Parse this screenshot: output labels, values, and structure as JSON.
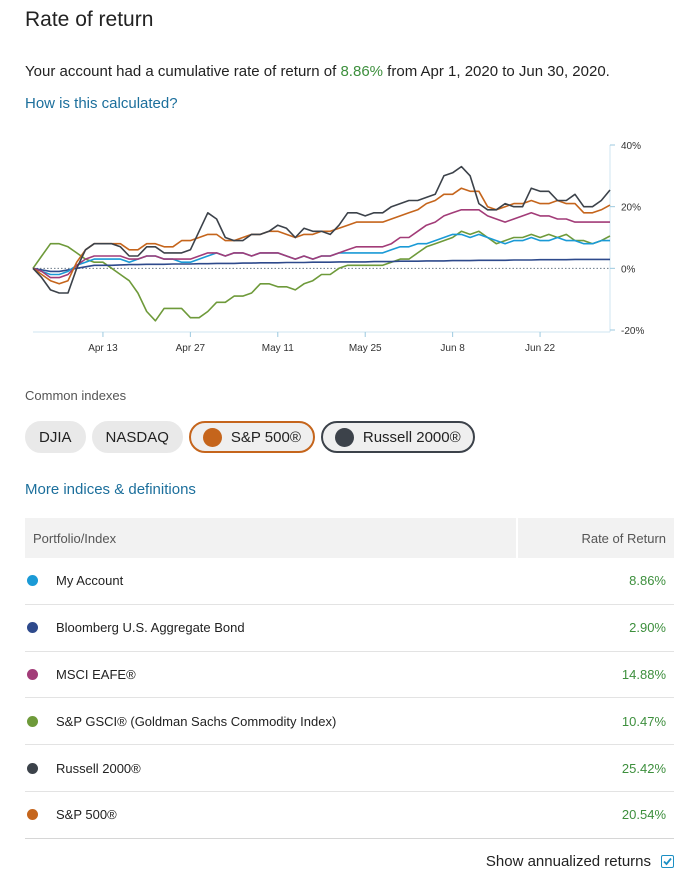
{
  "title": "Rate of return",
  "summary": {
    "prefix": "Your account had a cumulative rate of return of ",
    "value": "8.86%",
    "suffix": " from Apr 1, 2020 to Jun 30, 2020."
  },
  "how_link": "How is this calculated?",
  "common_indexes_label": "Common indexes",
  "chips": [
    {
      "label": "DJIA",
      "selected": false
    },
    {
      "label": "NASDAQ",
      "selected": false
    },
    {
      "label": "S&P 500®",
      "selected": true,
      "color": "#c5651c"
    },
    {
      "label": "Russell 2000®",
      "selected": true,
      "color": "#3c424a"
    }
  ],
  "more_link": "More indices & definitions",
  "table": {
    "headers": [
      "Portfolio/Index",
      "Rate of Return"
    ],
    "rows": [
      {
        "name": "My Account",
        "value": "8.86%",
        "color": "#1a9ad6"
      },
      {
        "name": "Bloomberg U.S. Aggregate Bond",
        "value": "2.90%",
        "color": "#2e4a8c"
      },
      {
        "name": "MSCI EAFE®",
        "value": "14.88%",
        "color": "#a23c78"
      },
      {
        "name": "S&P GSCI® (Goldman Sachs Commodity Index)",
        "value": "10.47%",
        "color": "#6e9a3a"
      },
      {
        "name": "Russell 2000®",
        "value": "25.42%",
        "color": "#3c424a"
      },
      {
        "name": "S&P 500®",
        "value": "20.54%",
        "color": "#c5651c"
      }
    ]
  },
  "annualized_label": "Show annualized returns",
  "annualized_checked": true,
  "chart_data": {
    "type": "line",
    "x_tick_labels": [
      "Apr 13",
      "Apr 27",
      "May 11",
      "May 25",
      "Jun 8",
      "Jun 22"
    ],
    "x_tick_index": [
      8,
      18,
      28,
      38,
      48,
      58
    ],
    "y_tick_labels": [
      "40%",
      "20%",
      "0%",
      "-20%"
    ],
    "y_ticks": [
      40,
      20,
      0,
      -20
    ],
    "ylim": [
      -20,
      40
    ],
    "xlim": [
      0,
      66
    ],
    "grid": false,
    "series": [
      {
        "name": "My Account",
        "color": "#1a9ad6",
        "values": [
          0,
          -1,
          -2,
          -2,
          -1,
          1,
          2,
          3,
          3,
          3,
          3,
          2,
          3,
          4,
          4,
          3,
          3,
          2,
          2,
          3,
          4,
          5,
          4,
          5,
          5,
          4,
          5,
          5,
          5,
          4,
          3,
          4,
          3,
          4,
          4,
          5,
          5,
          5,
          5,
          5,
          5,
          6,
          7,
          7,
          8,
          8,
          9,
          10,
          11,
          11,
          10,
          11,
          10,
          9,
          8,
          9,
          9,
          10,
          9,
          9,
          10,
          9,
          9,
          8,
          8,
          9,
          9
        ]
      },
      {
        "name": "Bloomberg U.S. Aggregate Bond",
        "color": "#2e4a8c",
        "values": [
          0,
          -0.5,
          -1,
          -1,
          -0.5,
          0,
          0.5,
          1,
          1,
          1,
          1.1,
          1.2,
          1.2,
          1.3,
          1.3,
          1.3,
          1.4,
          1.4,
          1.4,
          1.5,
          1.5,
          1.6,
          1.6,
          1.6,
          1.7,
          1.7,
          1.8,
          1.8,
          1.8,
          1.9,
          1.9,
          1.9,
          2,
          2,
          2,
          2.1,
          2.1,
          2.1,
          2.1,
          2.2,
          2.2,
          2.2,
          2.3,
          2.3,
          2.3,
          2.4,
          2.4,
          2.4,
          2.5,
          2.5,
          2.5,
          2.6,
          2.6,
          2.6,
          2.6,
          2.7,
          2.7,
          2.7,
          2.8,
          2.8,
          2.8,
          2.8,
          2.9,
          2.9,
          2.9,
          2.9,
          2.9
        ]
      },
      {
        "name": "MSCI EAFE®",
        "color": "#a23c78",
        "values": [
          0,
          -1,
          -3,
          -3,
          -2,
          1,
          3,
          4,
          4,
          4,
          4,
          3,
          3,
          4,
          4,
          3,
          3,
          3,
          3,
          4,
          5,
          5,
          4,
          5,
          5,
          4,
          5,
          5,
          5,
          4,
          3,
          4,
          3,
          4,
          4,
          5,
          6,
          7,
          7,
          7,
          7,
          8,
          10,
          10,
          12,
          14,
          15,
          17,
          18,
          19,
          19,
          19,
          17,
          16,
          15,
          16,
          17,
          18,
          17,
          17,
          16,
          16,
          15,
          15,
          15,
          15,
          15
        ]
      },
      {
        "name": "S&P GSCI® (Goldman Sachs Commodity Index)",
        "color": "#6e9a3a",
        "values": [
          0,
          4,
          8,
          8,
          7,
          5,
          3,
          2,
          2,
          0,
          -2,
          -4,
          -8,
          -14,
          -17,
          -13,
          -13,
          -13,
          -16,
          -16,
          -14,
          -11,
          -11,
          -9,
          -9,
          -8,
          -5,
          -5,
          -6,
          -6,
          -7,
          -5,
          -4,
          -2,
          -2,
          0,
          1,
          1,
          1,
          1,
          1,
          2,
          3,
          3,
          5,
          7,
          8,
          9,
          10,
          12,
          11,
          12,
          10,
          8,
          9,
          10,
          10,
          11,
          10,
          11,
          10,
          11,
          9,
          9,
          8,
          9,
          10.5
        ]
      },
      {
        "name": "Russell 2000®",
        "color": "#3c424a",
        "values": [
          0,
          -3,
          -7,
          -8,
          -8,
          0,
          6,
          8,
          8,
          8,
          7,
          4,
          4,
          7,
          7,
          5,
          5,
          5,
          6,
          12,
          18,
          16,
          10,
          9,
          9,
          11,
          11,
          12,
          14,
          13,
          10,
          13,
          12,
          12,
          11,
          14,
          18,
          18,
          17,
          18,
          18,
          20,
          21,
          22,
          22,
          23,
          24,
          30,
          31,
          33,
          30,
          21,
          19,
          19,
          21,
          20,
          20,
          26,
          25,
          25,
          22,
          22,
          24,
          20,
          20,
          22,
          25.4
        ]
      },
      {
        "name": "S&P 500®",
        "color": "#c5651c",
        "values": [
          0,
          -2,
          -4,
          -5,
          -4,
          2,
          6,
          8,
          8,
          8,
          8,
          6,
          6,
          8,
          8,
          7,
          7,
          9,
          9,
          10,
          11,
          11,
          9,
          9,
          10,
          11,
          11,
          12,
          12,
          11,
          10,
          11,
          11,
          12,
          12,
          13,
          14,
          15,
          15,
          15,
          15,
          16,
          17,
          18,
          19,
          21,
          22,
          24,
          24,
          26,
          25,
          25,
          20,
          19,
          20,
          21,
          21,
          22,
          21,
          21,
          22,
          21,
          21,
          18,
          18,
          19,
          20.5
        ]
      }
    ]
  }
}
